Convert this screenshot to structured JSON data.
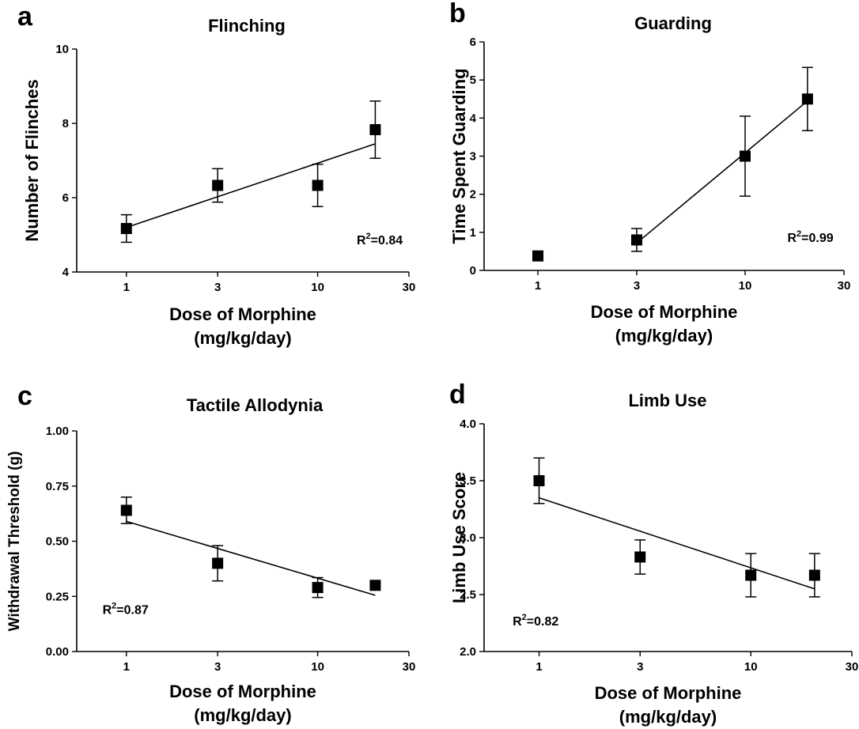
{
  "chart_data": [
    {
      "panel": "a",
      "type": "scatter",
      "title": "Flinching",
      "xlabel": [
        "Dose of Morphine",
        "(mg/kg/day)"
      ],
      "ylabel": "Number of Flinches",
      "x_scale": "log",
      "xlim": [
        0.55,
        30
      ],
      "xticks": [
        1,
        3,
        10,
        30
      ],
      "ylim": [
        4,
        10
      ],
      "yticks": [
        4,
        6,
        8,
        10
      ],
      "ytick_labels": [
        "4",
        "6",
        "8",
        "10"
      ],
      "x": [
        1,
        3,
        10,
        20
      ],
      "y": [
        5.17,
        6.33,
        6.33,
        7.83
      ],
      "err": [
        0.37,
        0.45,
        0.57,
        0.77
      ],
      "fit_x": [
        1,
        20
      ],
      "fit_y": [
        5.2,
        7.45
      ],
      "annotation_prefix": "R",
      "annotation_sup": "2",
      "annotation_suffix": "=0.84",
      "annotation_pos": [
        16,
        4.75
      ]
    },
    {
      "panel": "b",
      "type": "scatter",
      "title": "Guarding",
      "xlabel": [
        "Dose of Morphine",
        "(mg/kg/day)"
      ],
      "ylabel": "Time Spent Guarding",
      "x_scale": "log",
      "xlim": [
        0.55,
        30
      ],
      "xticks": [
        1,
        3,
        10,
        30
      ],
      "ylim": [
        0,
        6
      ],
      "yticks": [
        0,
        1,
        2,
        3,
        4,
        5,
        6
      ],
      "ytick_labels": [
        "0",
        "1",
        "2",
        "3",
        "4",
        "5",
        "6"
      ],
      "x": [
        1,
        3,
        10,
        20
      ],
      "y": [
        0.38,
        0.8,
        3.0,
        4.5
      ],
      "err": [
        0.1,
        0.3,
        1.05,
        0.83
      ],
      "fit_x": [
        3,
        20
      ],
      "fit_y": [
        0.72,
        4.45
      ],
      "annotation_prefix": "R",
      "annotation_sup": "2",
      "annotation_suffix": "=0.99",
      "annotation_pos": [
        16,
        0.75
      ]
    },
    {
      "panel": "c",
      "type": "scatter",
      "title": "Tactile Allodynia",
      "xlabel": [
        "Dose of Morphine",
        "(mg/kg/day)"
      ],
      "ylabel": "Withdrawal Threshold (g)",
      "x_scale": "log",
      "xlim": [
        0.55,
        30
      ],
      "xticks": [
        1,
        3,
        10,
        30
      ],
      "ylim": [
        0,
        1
      ],
      "yticks": [
        0,
        0.25,
        0.5,
        0.75,
        1
      ],
      "ytick_labels": [
        "0.00",
        "0.25",
        "0.50",
        "0.75",
        "1.00"
      ],
      "x": [
        1,
        3,
        10,
        20
      ],
      "y": [
        0.64,
        0.4,
        0.29,
        0.3
      ],
      "err": [
        0.06,
        0.08,
        0.045,
        0
      ],
      "fit_x": [
        1,
        20
      ],
      "fit_y": [
        0.59,
        0.255
      ],
      "annotation_prefix": "R",
      "annotation_sup": "2",
      "annotation_suffix": "=0.87",
      "annotation_pos": [
        0.75,
        0.17
      ]
    },
    {
      "panel": "d",
      "type": "scatter",
      "title": "Limb Use",
      "xlabel": [
        "Dose of Morphine",
        "(mg/kg/day)"
      ],
      "ylabel": "Limb Use Score",
      "x_scale": "log",
      "xlim": [
        0.55,
        30
      ],
      "xticks": [
        1,
        3,
        10,
        30
      ],
      "ylim": [
        2,
        4
      ],
      "yticks": [
        2,
        2.5,
        3,
        3.5,
        4
      ],
      "ytick_labels": [
        "2.0",
        "2.5",
        "3.0",
        "3.5",
        "4.0"
      ],
      "x": [
        1,
        3,
        10,
        20
      ],
      "y": [
        3.5,
        2.83,
        2.67,
        2.67
      ],
      "err": [
        0.2,
        0.15,
        0.19,
        0.19
      ],
      "fit_x": [
        1,
        20
      ],
      "fit_y": [
        3.35,
        2.55
      ],
      "annotation_prefix": "R",
      "annotation_sup": "2",
      "annotation_suffix": "=0.82",
      "annotation_pos": [
        0.75,
        2.23
      ]
    }
  ]
}
